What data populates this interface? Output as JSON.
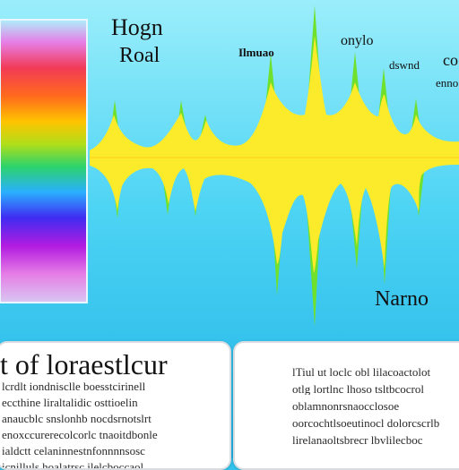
{
  "labels": {
    "title_line1": "Hogn",
    "title_line2": "Roal",
    "top_text_1": "Ilmuao",
    "top_text_2": "onylo",
    "top_text_3": "dswnd",
    "top_text_4": "co",
    "top_text_5": "enno",
    "bottom_label": "Narno"
  },
  "cards": {
    "left": {
      "heading": "t of loraestlcur",
      "lines": [
        "lcrdlt iondnisclle boesstcirinell",
        "eccthine liraltalidic osttioelin",
        "anaucblc snslonhb nocdsrnotslrt",
        "enoxccurerecolcorlc tnaoitdbonle",
        "ialdctt celaninnestnfonnnnsosc",
        "icnilluls hoalatrsc ilelcboccaol"
      ]
    },
    "right": {
      "lines": [
        "lTiul ut loclc obl lilacoactolot",
        "otlg lortlnc lhoso tsltbcocrol",
        "oblamnonrsnaocclosoe",
        "oorcochtlsoeutinocl dolorcscrlb",
        "lirelanaoltsbrecr lbvlilecboc"
      ]
    }
  },
  "colors": {
    "background": "#33c3ec",
    "spectrum": [
      "#e64cc6",
      "#f23a57",
      "#ff6a1c",
      "#ffc400",
      "#b0de1a",
      "#2cd36c",
      "#2ab0ff",
      "#3f2cf2",
      "#b21ce0",
      "#e67ee6",
      "#aef0fb"
    ],
    "wave_fill": "#fbeb2a",
    "wave_spike": "#6fe02c",
    "axis_line": "#ffd21a"
  }
}
